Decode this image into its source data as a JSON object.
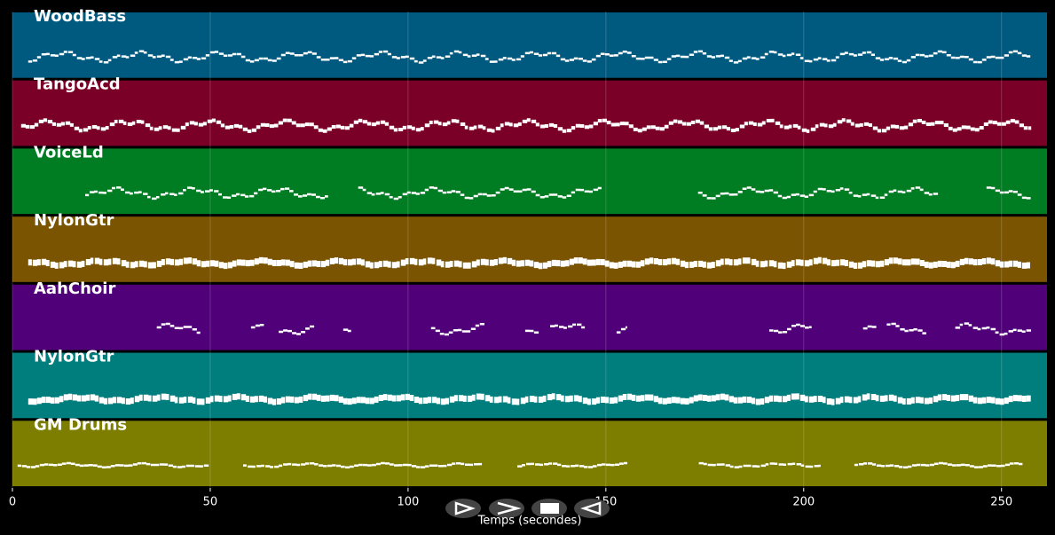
{
  "chart_data": {
    "type": "pianoroll",
    "xlabel": "Temps (secondes)",
    "xlim": [
      0,
      261.5
    ],
    "xticks": [
      0,
      50,
      100,
      150,
      200,
      250
    ],
    "grid": true,
    "tracks": [
      {
        "name": "WoodBass",
        "color": "#005a80",
        "spans": [
          [
            4,
            257.5
          ]
        ]
      },
      {
        "name": "TangoAcd",
        "color": "#7a0028",
        "spans": [
          [
            2.2,
            257.5
          ]
        ]
      },
      {
        "name": "VoiceLd",
        "color": "#007c22",
        "spans": [
          [
            18.4,
            79.8
          ],
          [
            87.4,
            148.9
          ],
          [
            173.3,
            234.1
          ],
          [
            246.2,
            257.5
          ]
        ]
      },
      {
        "name": "NylonGtr",
        "color": "#7a5400",
        "spans": [
          [
            4,
            257.5
          ]
        ]
      },
      {
        "name": "AahChoir",
        "color": "#500078",
        "spans": [
          [
            36.5,
            47.5
          ],
          [
            60.3,
            63.7
          ],
          [
            67.3,
            76.7
          ],
          [
            83.6,
            86.1
          ],
          [
            105.8,
            119.3
          ],
          [
            129.6,
            133
          ],
          [
            135.9,
            145.3
          ],
          [
            152.7,
            155.4
          ],
          [
            191.3,
            202
          ],
          [
            215,
            218.4
          ],
          [
            221,
            231.2
          ],
          [
            238.3,
            257.5
          ]
        ]
      },
      {
        "name": "NylonGtr",
        "color": "#007d7d",
        "spans": [
          [
            4,
            257.5
          ]
        ]
      },
      {
        "name": "GM Drums",
        "color": "#7d7d00",
        "spans": [
          [
            1.3,
            49.8
          ],
          [
            58.3,
            119
          ],
          [
            127.6,
            155.4
          ],
          [
            173.5,
            204.3
          ],
          [
            212.8,
            255.8
          ]
        ]
      }
    ]
  }
}
